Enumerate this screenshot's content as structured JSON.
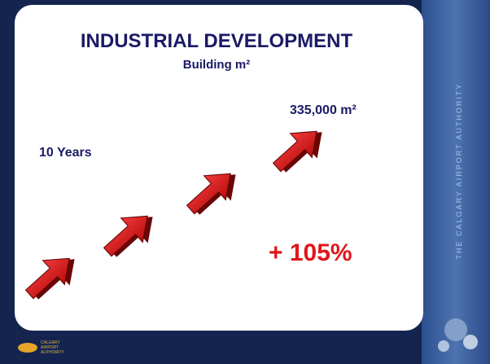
{
  "slide": {
    "title": "INDUSTRIAL DEVELOPMENT",
    "subtitle": "Building m²",
    "total": "335,000 m²",
    "period": "10 Years",
    "growth": "+ 105%"
  },
  "branding": {
    "sidebar": "The Calgary Airport Authority",
    "logo": [
      "CALGARY",
      "AIRPORT",
      "AUTHORITY"
    ]
  }
}
